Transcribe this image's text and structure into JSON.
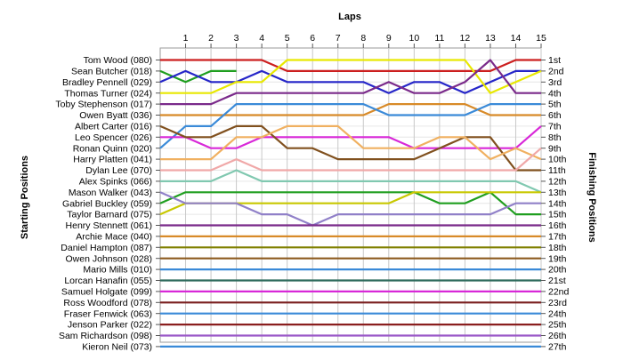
{
  "chart_data": {
    "type": "line",
    "title": "",
    "xlabel": "Laps",
    "ylabel_left": "Starting Positions",
    "ylabel_right": "Finishing Positions",
    "x": [
      0,
      1,
      2,
      3,
      4,
      5,
      6,
      7,
      8,
      9,
      10,
      11,
      12,
      13,
      14,
      15
    ],
    "xticks": [
      "1",
      "2",
      "3",
      "4",
      "5",
      "6",
      "7",
      "8",
      "9",
      "10",
      "11",
      "12",
      "13",
      "14",
      "15"
    ],
    "position_labels": [
      "1st",
      "2nd",
      "3rd",
      "4th",
      "5th",
      "6th",
      "7th",
      "8th",
      "9th",
      "10th",
      "11th",
      "12th",
      "13th",
      "14th",
      "15th",
      "16th",
      "17th",
      "18th",
      "19th",
      "20th",
      "21st",
      "22nd",
      "23rd",
      "24th",
      "25th",
      "26th",
      "27th"
    ],
    "grid": true,
    "series": [
      {
        "name": "Tom Wood (080)",
        "color": "#cc1f1f",
        "positions": [
          1,
          1,
          1,
          1,
          1,
          2,
          2,
          2,
          2,
          2,
          2,
          2,
          2,
          2,
          1,
          1
        ]
      },
      {
        "name": "Sean Butcher (018)",
        "color": "#1f9e1f",
        "positions": [
          2,
          3,
          2,
          2
        ]
      },
      {
        "name": "Bradley Pennell (029)",
        "color": "#2525c8",
        "positions": [
          3,
          2,
          3,
          3,
          2,
          3,
          3,
          3,
          3,
          4,
          3,
          3,
          4,
          3,
          2,
          2
        ]
      },
      {
        "name": "Thomas Turner (024)",
        "color": "#e8e800",
        "positions": [
          4,
          4,
          4,
          3,
          3,
          1,
          1,
          1,
          1,
          1,
          1,
          1,
          1,
          4,
          3,
          2
        ]
      },
      {
        "name": "Toby Stephenson (017)",
        "color": "#7a2a8a",
        "positions": [
          5,
          5,
          5,
          4,
          4,
          4,
          4,
          4,
          4,
          3,
          4,
          4,
          3,
          1,
          4,
          4
        ]
      },
      {
        "name": "Owen Byatt (036)",
        "color": "#d88a28",
        "positions": [
          6,
          6,
          6,
          6,
          6,
          6,
          6,
          6,
          6,
          5,
          5,
          5,
          5,
          6,
          6,
          6
        ]
      },
      {
        "name": "Ronan Quinn (020)",
        "color": "#3a8ad8",
        "positions": [
          9,
          7,
          7,
          5,
          5,
          5,
          5,
          5,
          5,
          6,
          6,
          6,
          6,
          5,
          5,
          5
        ]
      },
      {
        "name": "Leo Spencer (026)",
        "color": "#d828d8",
        "positions": [
          8,
          8,
          9,
          9,
          8,
          8,
          8,
          8,
          8,
          8,
          9,
          9,
          9,
          9,
          9,
          7
        ]
      },
      {
        "name": "Albert Carter (016)",
        "color": "#80501e",
        "positions": [
          7,
          8,
          8,
          7,
          7,
          9,
          9,
          10,
          10,
          10,
          10,
          9,
          8,
          8,
          11,
          11
        ]
      },
      {
        "name": "Harry Platten (041)",
        "color": "#f0b060",
        "positions": [
          10,
          10,
          10,
          8,
          8,
          7,
          7,
          7,
          9,
          9,
          9,
          8,
          8,
          10,
          9,
          10
        ]
      },
      {
        "name": "Dylan Lee (070)",
        "color": "#f0a8a8",
        "positions": [
          11,
          11,
          11,
          10,
          11,
          11,
          11,
          11,
          11,
          11,
          11,
          11,
          11,
          11,
          11,
          9
        ]
      },
      {
        "name": "Alex Spinks (066)",
        "color": "#80c8b0",
        "positions": [
          12,
          12,
          12,
          11,
          12,
          12,
          12,
          12,
          12,
          12,
          12,
          12,
          12,
          12,
          12,
          13
        ]
      },
      {
        "name": "Gabriel Buckley (059)",
        "color": "#1f9e1f",
        "positions": [
          14,
          13,
          13,
          13,
          13,
          13,
          13,
          13,
          13,
          13,
          13,
          14,
          14,
          13,
          15,
          15
        ]
      },
      {
        "name": "Taylor Barnard (075)",
        "color": "#c8c800",
        "positions": [
          15,
          14,
          14,
          14,
          14,
          14,
          14,
          14,
          14,
          14,
          13,
          13,
          13,
          13,
          13,
          13
        ]
      },
      {
        "name": "Mason Walker (043)",
        "color": "#9080c8",
        "positions": [
          13,
          14,
          14,
          14,
          15,
          15,
          16,
          15,
          15,
          15,
          15,
          15,
          15,
          15,
          14,
          14
        ]
      },
      {
        "name": "Henry Stennett (061)",
        "color": "#7a2a8a",
        "positions": [
          16,
          16,
          16,
          16,
          16,
          16,
          16,
          16,
          16,
          16,
          16,
          16,
          16,
          16,
          16,
          16
        ]
      },
      {
        "name": "Archie Mace (040)",
        "color": "#d88a28",
        "positions": [
          17,
          17,
          17,
          17,
          17,
          17,
          17,
          17,
          17,
          17,
          17,
          17,
          17,
          17,
          17,
          17
        ]
      },
      {
        "name": "Daniel Hampton (087)",
        "color": "#808000",
        "positions": [
          18,
          18,
          18,
          18,
          18,
          18,
          18,
          18,
          18,
          18,
          18,
          18,
          18,
          18,
          18,
          18
        ]
      },
      {
        "name": "Owen Johnson (028)",
        "color": "#8c5a1e",
        "positions": [
          19,
          19,
          19,
          19,
          19,
          19,
          19,
          19,
          19,
          19,
          19,
          19,
          19,
          19,
          19,
          19
        ]
      },
      {
        "name": "Mario Mills (010)",
        "color": "#3a8ad8",
        "positions": [
          20,
          20,
          20,
          20,
          20,
          20,
          20,
          20,
          20,
          20,
          20,
          20,
          20,
          20,
          20,
          20
        ]
      },
      {
        "name": "Lorcan Hanafin (055)",
        "color": "#2e6b5c",
        "positions": [
          21,
          21,
          21,
          21,
          21,
          21,
          21,
          21,
          21,
          21,
          21,
          21,
          21,
          21,
          21,
          21
        ]
      },
      {
        "name": "Samuel Holgate (099)",
        "color": "#d828d8",
        "positions": [
          22,
          22,
          22,
          22,
          22,
          22,
          22,
          22,
          22,
          22,
          22,
          22,
          22,
          22,
          22,
          22
        ]
      },
      {
        "name": "Ross Woodford (078)",
        "color": "#7a1e1e",
        "positions": [
          23,
          23,
          23,
          23,
          23,
          23,
          23,
          23,
          23,
          23,
          23,
          23,
          23,
          23,
          23,
          23
        ]
      },
      {
        "name": "Fraser Fenwick (063)",
        "color": "#3a8ad8",
        "positions": [
          24,
          24,
          24,
          24,
          24,
          24,
          24,
          24,
          24,
          24,
          24,
          24,
          24,
          24,
          24,
          24
        ]
      },
      {
        "name": "Jenson Parker (022)",
        "color": "#8a1e1e",
        "positions": [
          25,
          25,
          25,
          25,
          25,
          25,
          25,
          25,
          25,
          25,
          25,
          25,
          25,
          25,
          25,
          25
        ]
      },
      {
        "name": "Sam Richardson (098)",
        "color": "#9a58c8",
        "positions": [
          26,
          26,
          26,
          26,
          26,
          26,
          26,
          26,
          26,
          26,
          26,
          26,
          26,
          26,
          26,
          26
        ]
      },
      {
        "name": "Kieron Neil (073)",
        "color": "#3a8ad8",
        "positions": [
          27,
          27,
          27,
          27,
          27,
          27,
          27,
          27,
          27,
          27,
          27,
          27,
          27,
          27,
          27,
          27
        ]
      }
    ]
  }
}
